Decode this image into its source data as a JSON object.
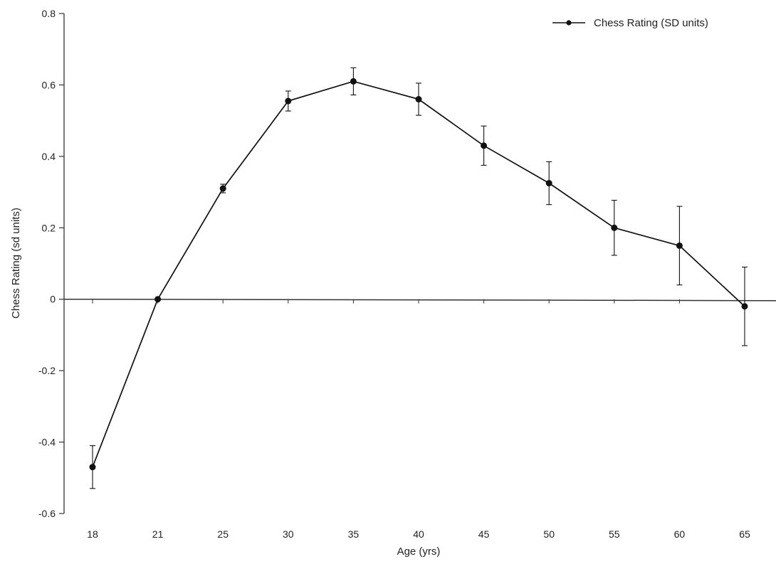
{
  "chart_data": {
    "type": "line",
    "title": "",
    "xlabel": "Age (yrs)",
    "ylabel": "Chess Rating (sd units)",
    "ylim": [
      -0.6,
      0.8
    ],
    "yticks": [
      "-0.6",
      "-0.4",
      "-0.2",
      "0",
      "0.2",
      "0.4",
      "0.6",
      "0.8"
    ],
    "categories": [
      "18",
      "21",
      "25",
      "30",
      "35",
      "40",
      "45",
      "50",
      "55",
      "60",
      "65"
    ],
    "series": [
      {
        "name": "Chess Rating (SD units)",
        "values": [
          -0.47,
          0.0,
          0.31,
          0.555,
          0.61,
          0.56,
          0.43,
          0.325,
          0.2,
          0.15,
          -0.02
        ],
        "error": [
          0.06,
          0.005,
          0.012,
          0.028,
          0.038,
          0.045,
          0.055,
          0.06,
          0.077,
          0.11,
          0.11
        ]
      }
    ],
    "legend_position": "top-right",
    "grid": false,
    "colors": {
      "line": "#111111",
      "axis": "#333333"
    }
  }
}
